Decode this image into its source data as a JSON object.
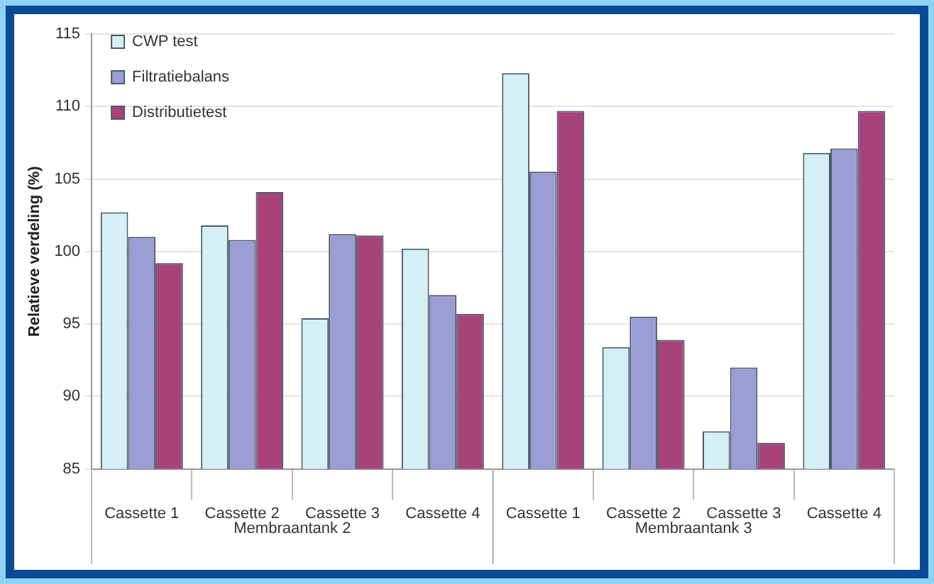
{
  "chart_data": {
    "type": "bar",
    "ylabel": "Relatieve verdeling (%)",
    "categories": [
      "Cassette 1",
      "Cassette 2",
      "Cassette 3",
      "Cassette 4",
      "Cassette 1",
      "Cassette 2",
      "Cassette 3",
      "Cassette 4"
    ],
    "annotations": [
      "Membraantank 2",
      "Membraantank 3"
    ],
    "series": [
      {
        "name": "CWP test",
        "color": "#d4f0f4",
        "values": [
          102.7,
          101.8,
          95.4,
          100.2,
          112.3,
          93.4,
          87.6,
          106.8
        ]
      },
      {
        "name": "Filtratiebalans",
        "color": "#9a9ed4",
        "values": [
          101.0,
          100.8,
          101.2,
          97.0,
          105.5,
          95.5,
          92.0,
          107.1
        ]
      },
      {
        "name": "Distributietest",
        "color": "#a8427a",
        "values": [
          99.2,
          104.1,
          101.1,
          95.7,
          109.7,
          93.9,
          86.8,
          109.7
        ]
      }
    ],
    "ylim": [
      85,
      115
    ],
    "yticks": [
      85,
      90,
      95,
      100,
      105,
      110,
      115
    ],
    "grid": "y",
    "legend": "top left"
  }
}
